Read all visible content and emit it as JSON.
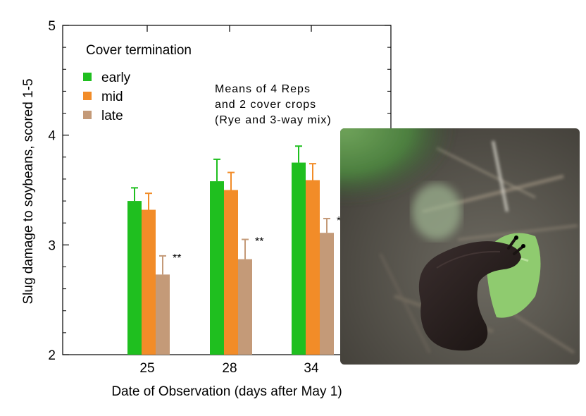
{
  "chart_data": {
    "type": "bar",
    "title": "",
    "xlabel": "Date of Observation (days after May 1)",
    "ylabel": "Slug damage to soybeans, scored 1-5",
    "ylim": [
      2,
      5
    ],
    "yticks": [
      "2",
      "3",
      "4",
      "5"
    ],
    "categories": [
      "25",
      "28",
      "34"
    ],
    "legend": {
      "title": "Cover termination",
      "placement": "top-left"
    },
    "series": [
      {
        "name": "early",
        "color": "#1fbf1f",
        "values": [
          3.4,
          3.58,
          3.75
        ],
        "errors": [
          0.12,
          0.2,
          0.15
        ]
      },
      {
        "name": "mid",
        "color": "#f28c28",
        "values": [
          3.32,
          3.5,
          3.59
        ],
        "errors": [
          0.15,
          0.16,
          0.15
        ]
      },
      {
        "name": "late",
        "color": "#c49a78",
        "values": [
          2.73,
          2.87,
          3.11
        ],
        "errors": [
          0.17,
          0.18,
          0.13
        ]
      }
    ],
    "significance_marks": [
      "**",
      "**",
      "**"
    ],
    "annotation": [
      "Means of 4 Reps",
      "and 2 cover crops",
      "(Rye and 3-way mix)"
    ],
    "grid": false
  },
  "photo": {
    "subject": "slug on soybean seedling",
    "icon": "slug-photo-icon"
  }
}
